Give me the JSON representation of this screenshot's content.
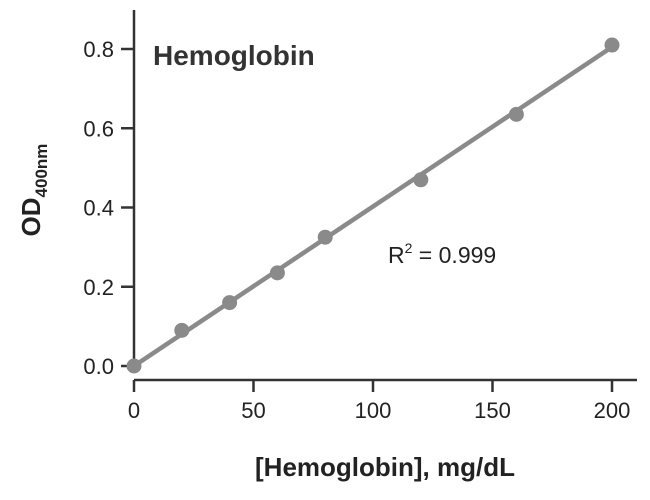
{
  "chart_data": {
    "type": "scatter",
    "title": "Hemoglobin",
    "xlabel": "[Hemoglobin], mg/dL",
    "ylabel_main": "OD",
    "ylabel_sub": "400nm",
    "xlim": [
      0,
      200
    ],
    "ylim": [
      0,
      0.8
    ],
    "xticks": [
      0,
      50,
      100,
      150,
      200
    ],
    "yticks": [
      0.0,
      0.2,
      0.4,
      0.6,
      0.8
    ],
    "xtick_labels": [
      "0",
      "50",
      "100",
      "150",
      "200"
    ],
    "ytick_labels": [
      "0.0",
      "0.2",
      "0.4",
      "0.6",
      "0.8"
    ],
    "series": [
      {
        "x": [
          0,
          20,
          40,
          60,
          80,
          120,
          160,
          200
        ],
        "y": [
          0.0,
          0.09,
          0.16,
          0.235,
          0.325,
          0.47,
          0.635,
          0.81
        ]
      }
    ],
    "fit_line": {
      "x": [
        0,
        200
      ],
      "y": [
        0.0,
        0.805
      ]
    },
    "annotation": {
      "main": "R",
      "sup": "2",
      "rest": " = 0.999"
    },
    "grid": false,
    "colors": {
      "series": "#8a8a8a",
      "axis": "#333333",
      "text": "#222222"
    }
  }
}
